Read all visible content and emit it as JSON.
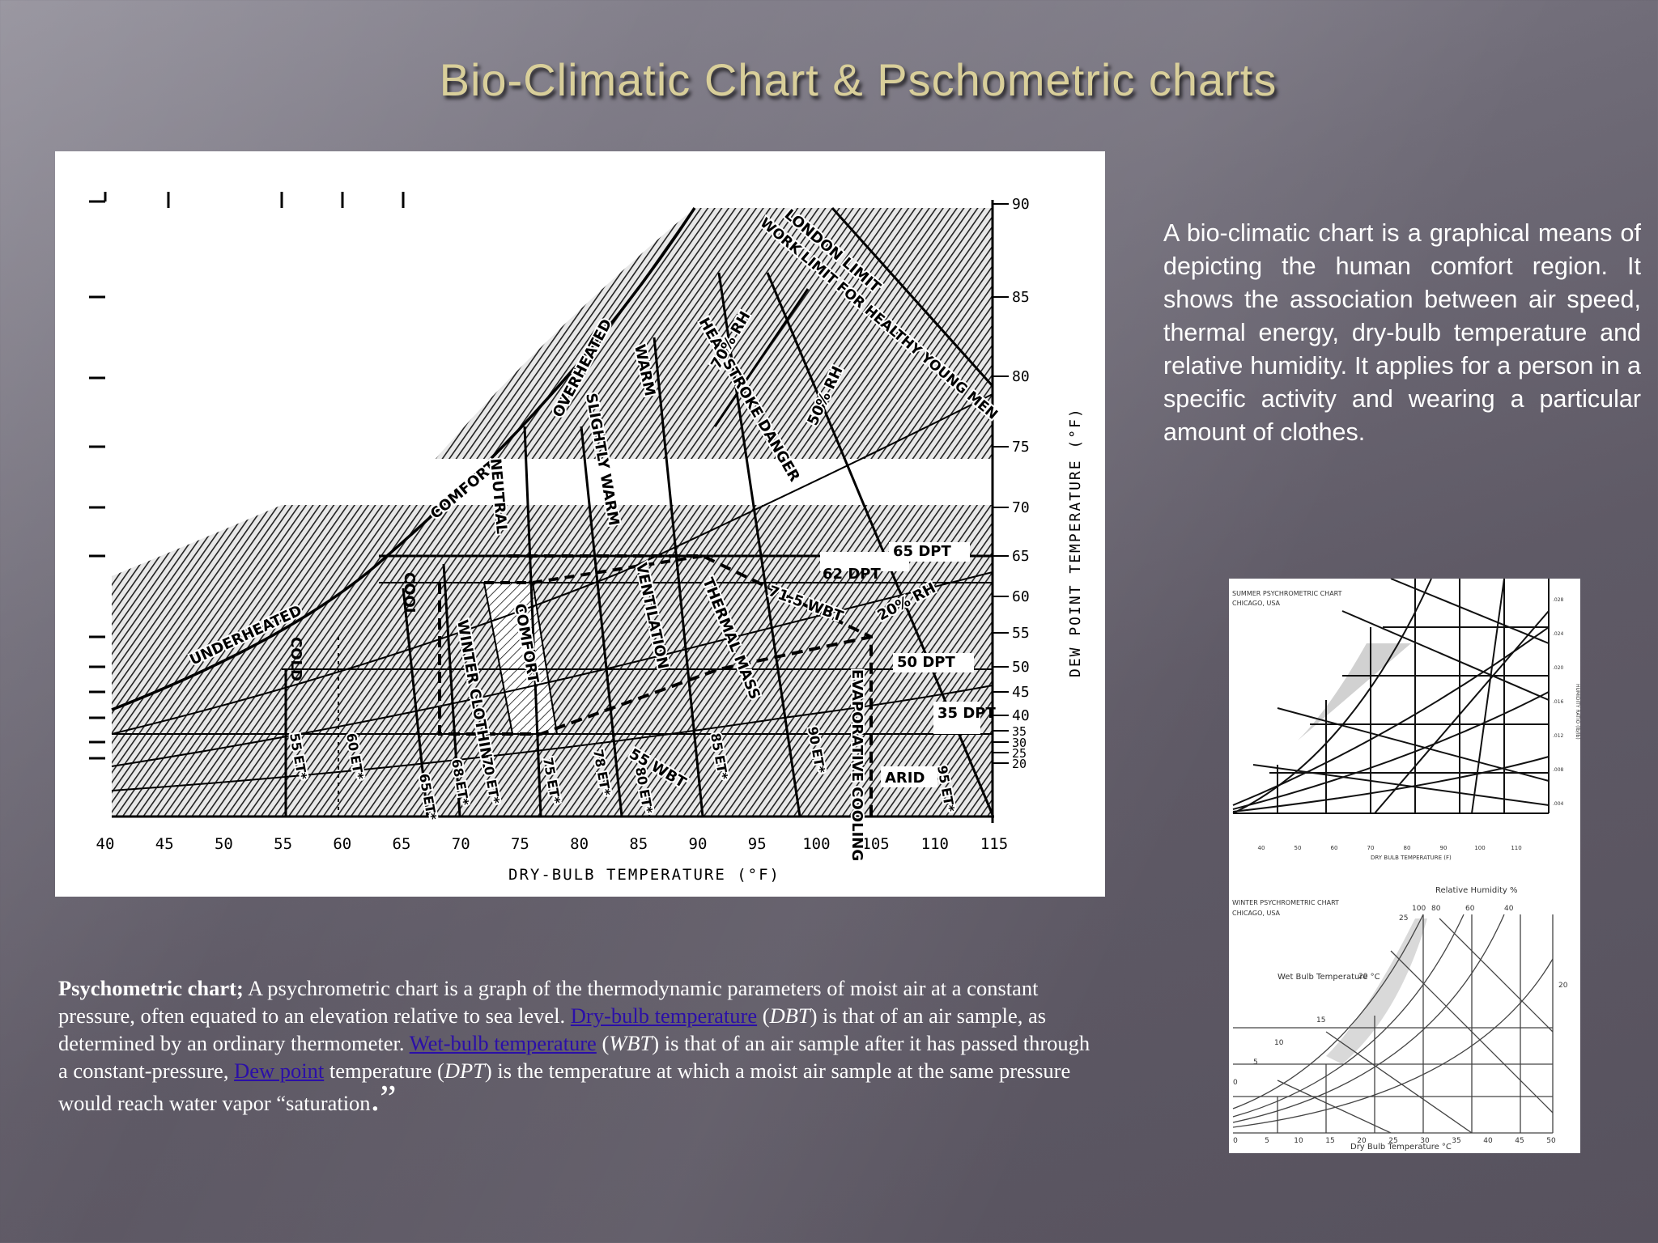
{
  "slide": {
    "title": "Bio-Climatic Chart & Pschometric charts"
  },
  "bio_text": "A bio-climatic chart is a graphical means of depicting the human comfort region. It shows the association between air speed, thermal energy, dry-bulb temperature and relative humidity. It applies for a person in a specific activity and wearing a particular amount of clothes.",
  "psy_text": {
    "lead": "Psychometric chart;",
    "p1": " A psychrometric chart is a graph of the thermodynamic parameters of moist air at a constant pressure, often equated to an elevation relative to sea level. ",
    "link_dbt": "Dry-bulb temperature",
    "p2a": " (",
    "abbr_dbt": "DBT",
    "p2b": ") is that of an air sample, as determined by an ordinary thermometer. ",
    "link_wbt": "Wet-bulb temperature",
    "p3a": " (",
    "abbr_wbt": "WBT",
    "p3b": ") is that of an air sample after it has passed through a constant-pressure, ",
    "link_dpt": "Dew point",
    "p4a": " temperature (",
    "abbr_dpt": "DPT",
    "p4b": ") is the temperature at which a moist air sample at the same pressure would reach water vapor “saturation",
    "end_dot": ".",
    "end_quote": "”"
  },
  "bio_chart": {
    "x_label": "DRY-BULB TEMPERATURE (°F)",
    "y_label": "DEW POINT TEMPERATURE (°F)",
    "x_ticks": [
      "40",
      "45",
      "50",
      "55",
      "60",
      "65",
      "70",
      "75",
      "80",
      "85",
      "90",
      "95",
      "100",
      "105",
      "110",
      "115"
    ],
    "y_ticks": [
      "90",
      "85",
      "80",
      "75",
      "70",
      "65",
      "60",
      "55",
      "50",
      "45",
      "40",
      "35",
      "30",
      "25",
      "20"
    ],
    "zones": {
      "underheated": "UNDERHEATED",
      "comfort_curve": "COMFORT",
      "overheated": "OVERHEATED",
      "cool": "COOL",
      "cold": "COLD",
      "winter_clothing": "WINTER CLOTHING",
      "comfort_zone": "COMFORT",
      "neutral": "NEUTRAL",
      "slightly_warm": "SLIGHTLY WARM",
      "warm": "WARM",
      "ventilation": "VENTILATION",
      "thermal_mass": "THERMAL MASS",
      "evaporative_cooling": "EVAPORATIVE COOLING",
      "arid": "ARID",
      "heat_stroke": "HEAT STROKE DANGER",
      "london_limit": "LONDON LIMIT",
      "work_limit": "WORK LIMIT FOR HEALTHY YOUNG MEN",
      "rh70": "70% RH",
      "rh50": "50% RH",
      "rh20": "20% RH",
      "dpt65": "65 DPT",
      "dpt62": "62 DPT",
      "dpt50": "50 DPT",
      "dpt35": "35 DPT",
      "wbt715": "71.5 WBT",
      "wbt55": "55 WBT"
    },
    "et_labels": [
      "55 ET*",
      "60 ET*",
      "65 ET*",
      "68 ET*",
      "70 ET*",
      "75 ET*",
      "78 ET*",
      "80 ET*",
      "85 ET*",
      "90 ET*",
      "95 ET*"
    ]
  },
  "psy_chart": {
    "summer_title": "SUMMER PSYCHROMETRIC CHART",
    "summer_sub": "CHICAGO, USA",
    "summer_x_label": "DRY BULB TEMPERATURE (F)",
    "summer_x_ticks": [
      "40",
      "50",
      "60",
      "70",
      "80",
      "90",
      "100",
      "110"
    ],
    "summer_y_label": "HUMIDITY RATIO (lb/lb)",
    "summer_y_ticks": [
      ".028",
      ".024",
      ".020",
      ".016",
      ".012",
      ".008",
      ".004"
    ],
    "winter_title": "WINTER PSYCHROMETRIC CHART",
    "winter_sub": "CHICAGO, USA",
    "rh_title": "Relative Humidity %",
    "rh_ticks": [
      "100",
      "80",
      "60",
      "40"
    ],
    "wbt_title": "Wet Bulb Temperature °C",
    "wbt_ticks": [
      "25",
      "20",
      "15",
      "10",
      "5",
      "0"
    ],
    "right_tick": "20",
    "winter_x_label": "Dry Bulb Temperature °C",
    "winter_x_ticks": [
      "0",
      "5",
      "10",
      "15",
      "20",
      "25",
      "30",
      "35",
      "40",
      "45",
      "50"
    ]
  },
  "colors": {
    "title": "#d9cf9a",
    "link": "#2b0fa8"
  }
}
